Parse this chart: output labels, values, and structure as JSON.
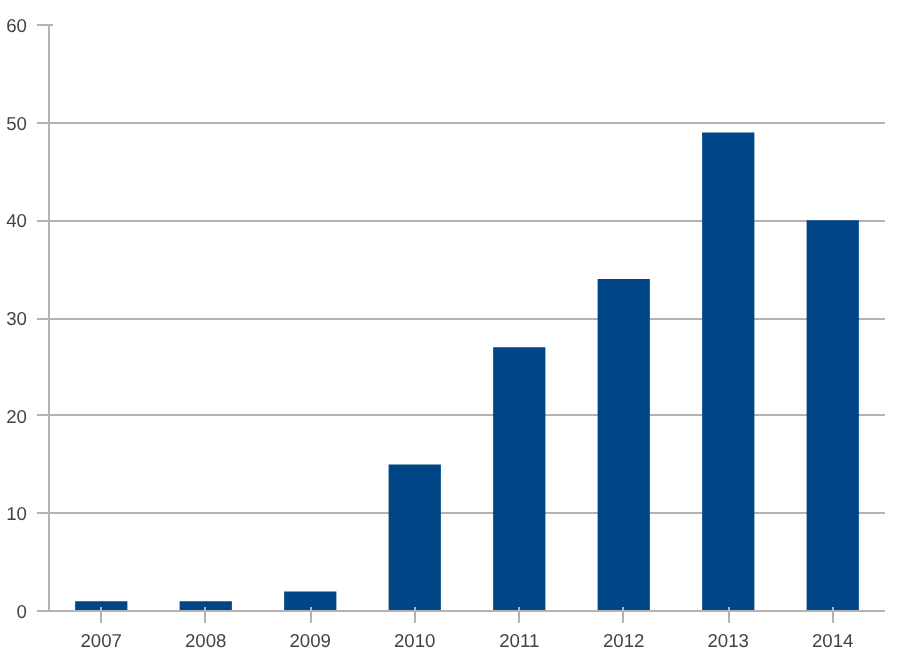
{
  "chart_data": {
    "type": "bar",
    "categories": [
      "2007",
      "2008",
      "2009",
      "2010",
      "2011",
      "2012",
      "2013",
      "2014"
    ],
    "values": [
      1,
      1,
      2,
      15,
      27,
      34,
      49,
      40
    ],
    "color": "#004586",
    "ylim": [
      0,
      60
    ],
    "yticks": [
      0,
      10,
      20,
      30,
      40,
      50,
      60
    ],
    "grid": "y"
  }
}
